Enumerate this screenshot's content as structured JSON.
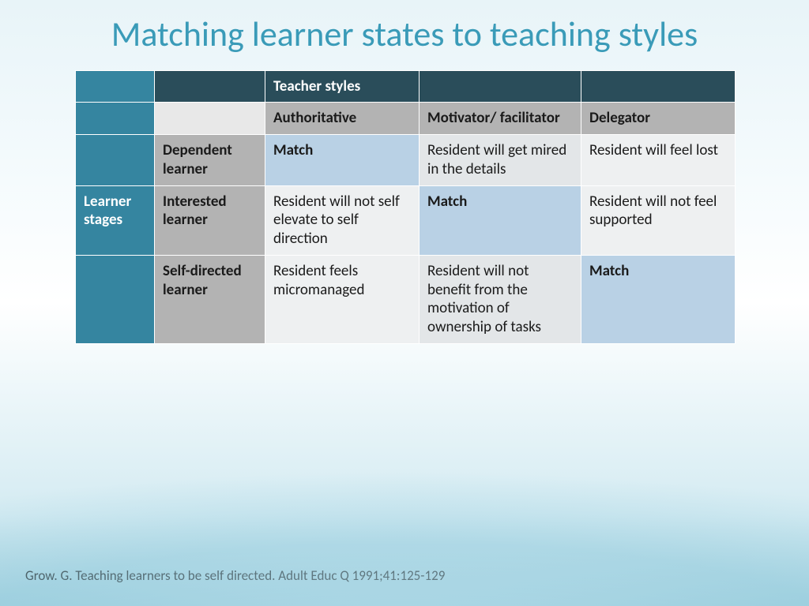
{
  "slide": {
    "title": "Matching learner states to teaching styles",
    "citation": "Grow. G. Teaching learners to be self directed. Adult Educ Q 1991;41:125-129"
  },
  "table": {
    "header": {
      "teacher_styles_label": "Teacher styles",
      "styles": [
        "Authoritative",
        "Motivator/ facilitator",
        "Delegator"
      ]
    },
    "row_header_label": "Learner stages",
    "rows": [
      {
        "stage": "Dependent learner",
        "cells": [
          "Match",
          "Resident will get mired in the details",
          "Resident will feel lost"
        ],
        "match_index": 0
      },
      {
        "stage": "Interested learner",
        "cells": [
          "Resident will not self elevate to self direction",
          "Match",
          "Resident will not feel supported"
        ],
        "match_index": 1
      },
      {
        "stage": "Self-directed learner",
        "cells": [
          "Resident feels micromanaged",
          "Resident will not benefit from the motivation of ownership of tasks",
          "Match"
        ],
        "match_index": 2
      }
    ]
  },
  "colors": {
    "title": "#3a9bb8",
    "header_blue": "#3585a0",
    "header_dark": "#2a4d5a",
    "gray_mid": "#b3b3b3",
    "gray_light": "#e8e8e8",
    "match_bg": "#b9d1e5",
    "cell_light": "#eef0f1",
    "cell_alt": "#e3e6e8"
  }
}
